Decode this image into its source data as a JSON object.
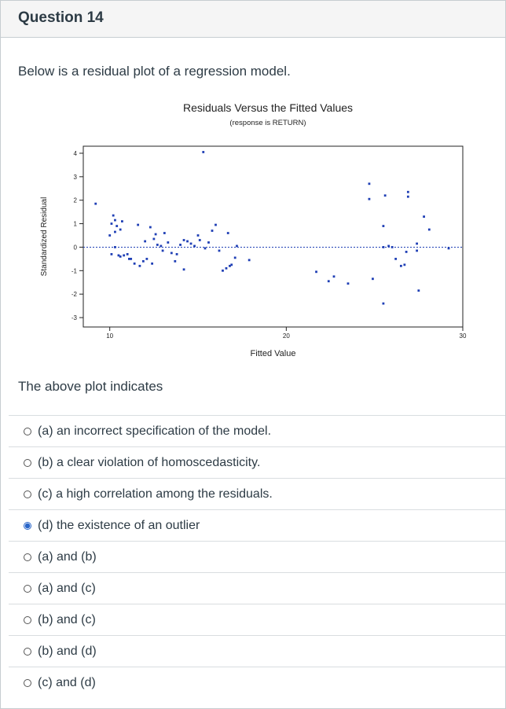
{
  "question": {
    "title": "Question 14",
    "prompt": "Below is a residual plot of a regression model.",
    "after_plot": "The above plot indicates"
  },
  "chart_data": {
    "type": "scatter",
    "title": "Residuals Versus the Fitted Values",
    "subtitle": "(response is RETURN)",
    "xlabel": "Fitted Value",
    "ylabel": "Standardized Residual",
    "xlim": [
      8.5,
      30
    ],
    "ylim": [
      -3.4,
      4.3
    ],
    "x_ticks": [
      10,
      20,
      30
    ],
    "y_ticks": [
      -3,
      -2,
      -1,
      0,
      1,
      2,
      3,
      4
    ],
    "reference_line": 0,
    "point_color": "#1f3fb5",
    "points": [
      [
        15.3,
        4.05
      ],
      [
        9.2,
        1.85
      ],
      [
        10.2,
        1.35
      ],
      [
        10.3,
        1.15
      ],
      [
        10.1,
        1.0
      ],
      [
        10.4,
        0.9
      ],
      [
        10.7,
        1.1
      ],
      [
        10.6,
        0.75
      ],
      [
        10.3,
        0.65
      ],
      [
        10.0,
        0.5
      ],
      [
        10.1,
        -0.3
      ],
      [
        10.3,
        0.0
      ],
      [
        10.5,
        -0.35
      ],
      [
        10.6,
        -0.4
      ],
      [
        10.8,
        -0.35
      ],
      [
        11.0,
        -0.3
      ],
      [
        11.2,
        -0.5
      ],
      [
        11.4,
        -0.7
      ],
      [
        11.7,
        -0.8
      ],
      [
        11.9,
        -0.6
      ],
      [
        12.1,
        -0.5
      ],
      [
        12.4,
        -0.7
      ],
      [
        11.6,
        0.95
      ],
      [
        12.3,
        0.85
      ],
      [
        12.6,
        0.55
      ],
      [
        12.5,
        0.35
      ],
      [
        12.7,
        0.1
      ],
      [
        12.9,
        0.05
      ],
      [
        13.1,
        0.6
      ],
      [
        13.3,
        0.2
      ],
      [
        13.0,
        -0.15
      ],
      [
        13.5,
        -0.25
      ],
      [
        13.8,
        -0.3
      ],
      [
        14.0,
        0.1
      ],
      [
        14.2,
        0.3
      ],
      [
        14.4,
        0.25
      ],
      [
        14.6,
        0.15
      ],
      [
        14.8,
        0.05
      ],
      [
        15.1,
        0.3
      ],
      [
        15.4,
        -0.05
      ],
      [
        15.6,
        0.2
      ],
      [
        15.8,
        0.7
      ],
      [
        16.0,
        0.95
      ],
      [
        16.2,
        -0.15
      ],
      [
        16.4,
        -1.0
      ],
      [
        16.6,
        -0.9
      ],
      [
        16.8,
        -0.8
      ],
      [
        16.9,
        -0.75
      ],
      [
        17.1,
        -0.45
      ],
      [
        17.2,
        0.05
      ],
      [
        16.7,
        0.6
      ],
      [
        14.2,
        -0.95
      ],
      [
        11.1,
        -0.5
      ],
      [
        12.0,
        0.25
      ],
      [
        13.7,
        -0.6
      ],
      [
        15.0,
        0.5
      ],
      [
        17.9,
        -0.55
      ],
      [
        21.7,
        -1.05
      ],
      [
        22.4,
        -1.45
      ],
      [
        22.7,
        -1.25
      ],
      [
        23.5,
        -1.55
      ],
      [
        24.7,
        2.7
      ],
      [
        24.7,
        2.05
      ],
      [
        25.6,
        2.2
      ],
      [
        25.5,
        0.9
      ],
      [
        25.5,
        0.0
      ],
      [
        25.8,
        0.05
      ],
      [
        26.2,
        -0.5
      ],
      [
        26.5,
        -0.8
      ],
      [
        26.7,
        -0.75
      ],
      [
        26.9,
        2.35
      ],
      [
        26.9,
        2.15
      ],
      [
        26.8,
        -0.2
      ],
      [
        27.4,
        0.15
      ],
      [
        27.4,
        -0.15
      ],
      [
        27.5,
        -1.85
      ],
      [
        27.8,
        1.3
      ],
      [
        28.1,
        0.75
      ],
      [
        29.2,
        -0.05
      ],
      [
        25.5,
        -2.4
      ],
      [
        24.9,
        -1.35
      ],
      [
        26.0,
        0.0
      ]
    ]
  },
  "options": [
    {
      "label": "(a) an incorrect specification of the model.",
      "selected": false
    },
    {
      "label": "(b) a clear violation of homoscedasticity.",
      "selected": false
    },
    {
      "label": "(c) a high correlation among the residuals.",
      "selected": false
    },
    {
      "label": "(d) the existence of an outlier",
      "selected": true
    },
    {
      "label": "(a) and (b)",
      "selected": false
    },
    {
      "label": "(a) and (c)",
      "selected": false
    },
    {
      "label": "(b) and (c)",
      "selected": false
    },
    {
      "label": "(b) and (d)",
      "selected": false
    },
    {
      "label": "(c) and (d)",
      "selected": false
    }
  ]
}
